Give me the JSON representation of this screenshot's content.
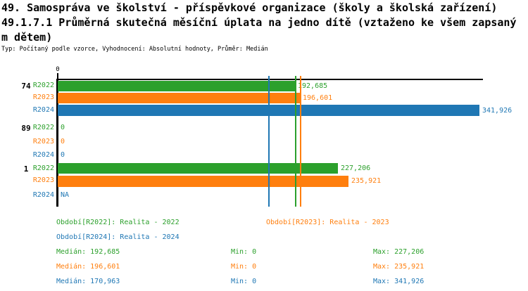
{
  "colors": {
    "green": "#2ca02c",
    "orange": "#ff7f0e",
    "blue": "#1f77b4",
    "black": "#000000"
  },
  "header": {
    "line1": "49. Samospráva ve školství - příspěvkové organizace (školy a školská zařízení)",
    "line2": "49.1.7.1 Průměrná skutečná měsíční úplata na jedno dítě (vztaženo ke všem zapsaný",
    "line3": "m dětem)",
    "meta": "Typ: Počítaný podle vzorce, Vyhodnocení: Absolutní hodnoty, Průměr: Medián"
  },
  "axis": {
    "zero": "0"
  },
  "chart_data": {
    "type": "bar",
    "orientation": "horizontal",
    "title": "49.1.7.1 Průměrná skutečná měsíční úplata na jedno dítě (vztaženo ke všem zapsaným dětem)",
    "categories": [
      "74",
      "89",
      "1"
    ],
    "series": [
      {
        "name": "R2022",
        "color": "#2ca02c",
        "values": [
          192685,
          0,
          227206
        ],
        "display": [
          "192,685",
          "0",
          "227,206"
        ]
      },
      {
        "name": "R2023",
        "color": "#ff7f0e",
        "values": [
          196601,
          0,
          235921
        ],
        "display": [
          "196,601",
          "0",
          "235,921"
        ]
      },
      {
        "name": "R2024",
        "color": "#1f77b4",
        "values": [
          341926,
          0,
          null
        ],
        "display": [
          "341,926",
          "0",
          "NA"
        ]
      }
    ],
    "xlim": [
      0,
      345000
    ],
    "grid": false,
    "legend_position": "bottom",
    "median_lines": [
      {
        "series": "R2022",
        "value": 192685,
        "color": "#2ca02c"
      },
      {
        "series": "R2023",
        "value": 196601,
        "color": "#ff7f0e"
      },
      {
        "series": "R2024",
        "value": 170963,
        "color": "#1f77b4"
      }
    ]
  },
  "footer": {
    "periods": [
      "Období[R2022]: Realita - 2022",
      "Období[R2023]: Realita - 2023",
      "Období[R2024]: Realita - 2024"
    ],
    "stats": [
      {
        "median": "Medián: 192,685",
        "min": "Min: 0",
        "max": "Max: 227,206"
      },
      {
        "median": "Medián: 196,601",
        "min": "Min: 0",
        "max": "Max: 235,921"
      },
      {
        "median": "Medián: 170,963",
        "min": "Min: 0",
        "max": "Max: 341,926"
      }
    ]
  }
}
